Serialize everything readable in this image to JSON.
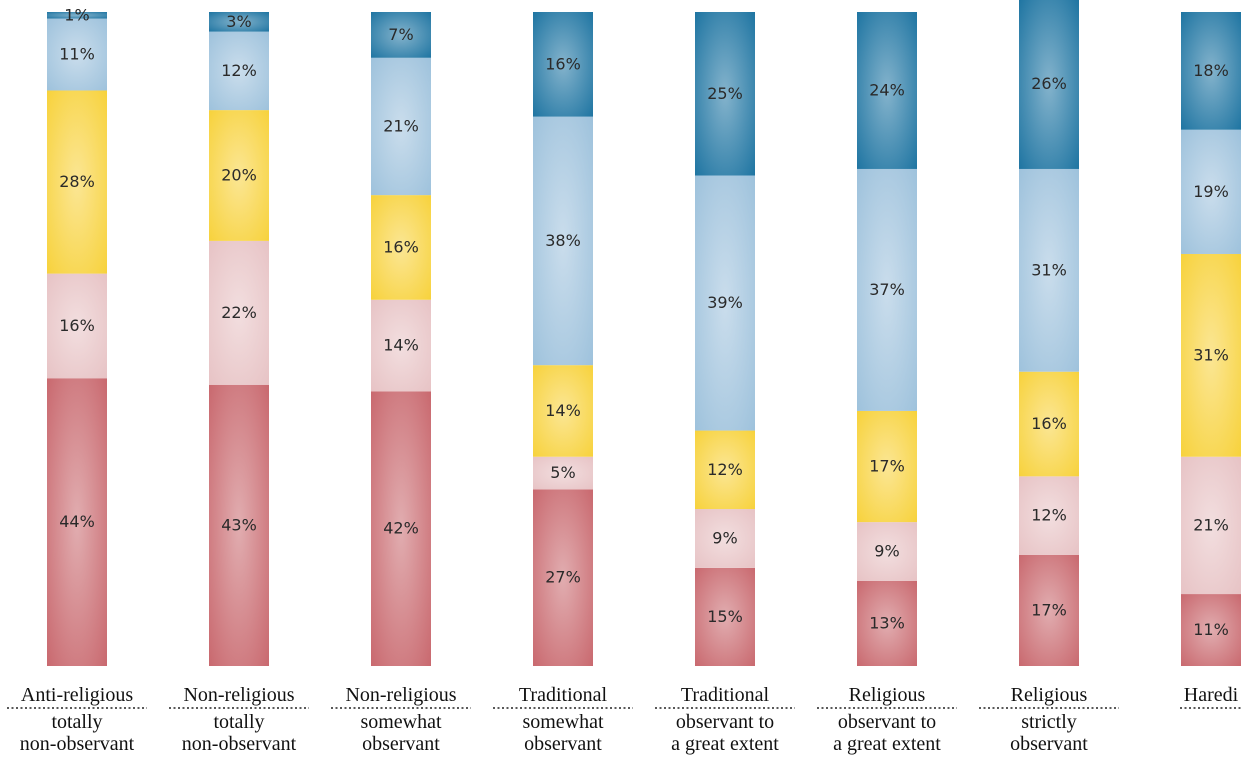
{
  "chart_data": {
    "type": "bar",
    "stacked": "percent",
    "orientation": "vertical",
    "categories": [
      {
        "main": "Anti-religious",
        "sub": [
          "totally",
          "non-observant"
        ]
      },
      {
        "main": "Non-religious",
        "sub": [
          "totally",
          "non-observant"
        ]
      },
      {
        "main": "Non-religious",
        "sub": [
          "somewhat",
          "observant"
        ]
      },
      {
        "main": "Traditional",
        "sub": [
          "somewhat",
          "observant"
        ]
      },
      {
        "main": "Traditional",
        "sub": [
          "observant to",
          "a great extent"
        ]
      },
      {
        "main": "Religious",
        "sub": [
          "observant to",
          "a great extent"
        ]
      },
      {
        "main": "Religious",
        "sub": [
          "strictly",
          "observant"
        ]
      },
      {
        "main": "Haredi",
        "sub": []
      }
    ],
    "series": [
      {
        "color": "#c9696f",
        "values": [
          44,
          43,
          42,
          27,
          15,
          13,
          17,
          11
        ]
      },
      {
        "color": "#e7c3c5",
        "values": [
          16,
          22,
          14,
          5,
          9,
          9,
          12,
          21
        ]
      },
      {
        "color": "#f7d23c",
        "values": [
          28,
          20,
          16,
          14,
          12,
          17,
          16,
          31
        ]
      },
      {
        "color": "#9ec2dc",
        "values": [
          11,
          12,
          21,
          38,
          39,
          37,
          31,
          19
        ]
      },
      {
        "color": "#1f75a2",
        "values": [
          1,
          3,
          7,
          16,
          25,
          24,
          26,
          18
        ]
      }
    ],
    "value_suffix": "%",
    "grid": false,
    "legend": "none"
  }
}
